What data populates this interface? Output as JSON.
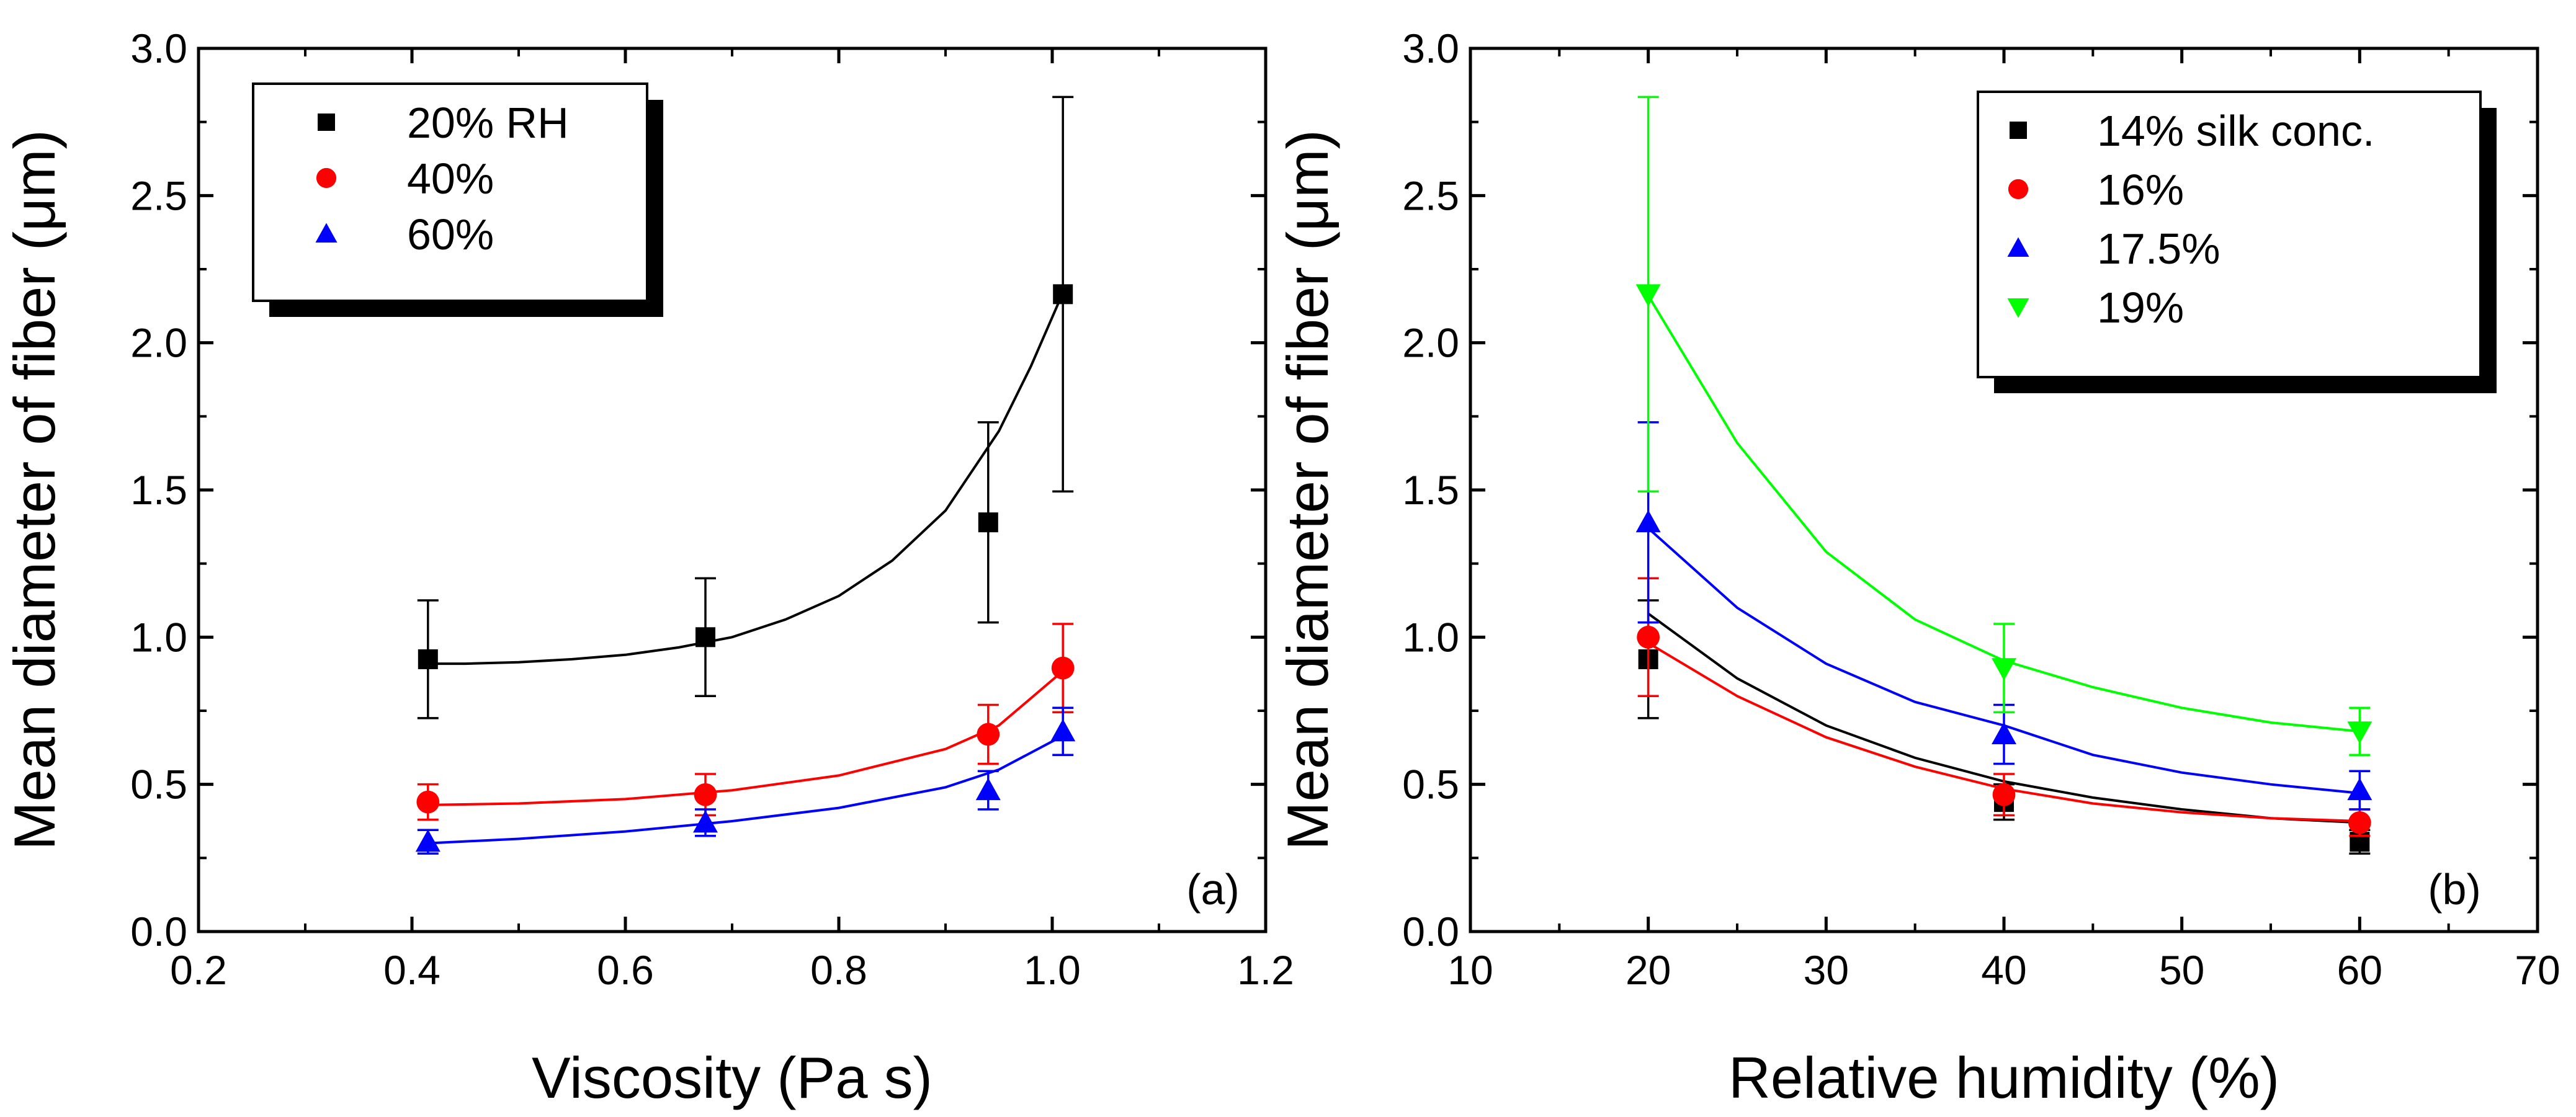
{
  "chart_data": [
    {
      "panel": "(a)",
      "type": "scatter",
      "xlabel": "Viscosity (Pa s)",
      "ylabel": "Mean diameter of fiber (μm)",
      "xlim": [
        0.2,
        1.2
      ],
      "ylim": [
        0.0,
        3.0
      ],
      "xticks": [
        "0.2",
        "0.4",
        "0.6",
        "0.8",
        "1.0",
        "1.2"
      ],
      "yticks": [
        "0.0",
        "0.5",
        "1.0",
        "1.5",
        "2.0",
        "2.5",
        "3.0"
      ],
      "legend_position": "top-left",
      "series": [
        {
          "name": "20% RH",
          "color": "#000000",
          "marker": "square",
          "x": [
            0.415,
            0.675,
            0.94,
            1.01
          ],
          "y": [
            0.925,
            1.0,
            1.39,
            2.165
          ],
          "err": [
            0.2,
            0.2,
            0.34,
            0.67
          ],
          "fit": {
            "x": [
              0.415,
              0.45,
              0.5,
              0.55,
              0.6,
              0.65,
              0.7,
              0.75,
              0.8,
              0.85,
              0.9,
              0.95,
              0.98,
              1.01
            ],
            "y": [
              0.91,
              0.91,
              0.915,
              0.925,
              0.94,
              0.965,
              1.0,
              1.06,
              1.14,
              1.26,
              1.43,
              1.7,
              1.92,
              2.17
            ]
          }
        },
        {
          "name": "40%",
          "color": "#ff0000",
          "marker": "circle",
          "x": [
            0.415,
            0.675,
            0.94,
            1.01
          ],
          "y": [
            0.44,
            0.465,
            0.67,
            0.895
          ],
          "err": [
            0.06,
            0.07,
            0.1,
            0.15
          ],
          "fit": {
            "x": [
              0.415,
              0.5,
              0.6,
              0.7,
              0.8,
              0.9,
              0.95,
              1.01
            ],
            "y": [
              0.43,
              0.435,
              0.45,
              0.48,
              0.53,
              0.62,
              0.7,
              0.885
            ]
          }
        },
        {
          "name": "60%",
          "color": "#0000ff",
          "marker": "triangle-up",
          "x": [
            0.415,
            0.675,
            0.94,
            1.01
          ],
          "y": [
            0.305,
            0.37,
            0.48,
            0.68
          ],
          "err": [
            0.04,
            0.045,
            0.065,
            0.08
          ],
          "fit": {
            "x": [
              0.415,
              0.5,
              0.6,
              0.7,
              0.8,
              0.9,
              0.95,
              1.01
            ],
            "y": [
              0.3,
              0.315,
              0.34,
              0.375,
              0.42,
              0.49,
              0.55,
              0.665
            ]
          }
        }
      ]
    },
    {
      "panel": "(b)",
      "type": "scatter",
      "xlabel": "Relative humidity (%)",
      "ylabel": "Mean diameter of fiber (μm)",
      "xlim": [
        10,
        70
      ],
      "ylim": [
        0.0,
        3.0
      ],
      "xticks": [
        "10",
        "20",
        "30",
        "40",
        "50",
        "60",
        "70"
      ],
      "yticks": [
        "0.0",
        "0.5",
        "1.0",
        "1.5",
        "2.0",
        "2.5",
        "3.0"
      ],
      "legend_position": "top-right",
      "series": [
        {
          "name": "14% silk conc.",
          "color": "#000000",
          "marker": "square",
          "x": [
            20,
            40,
            60
          ],
          "y": [
            0.925,
            0.44,
            0.305
          ],
          "err": [
            0.2,
            0.06,
            0.04
          ],
          "fit": {
            "x": [
              20,
              25,
              30,
              35,
              40,
              45,
              50,
              55,
              60
            ],
            "y": [
              1.08,
              0.86,
              0.7,
              0.59,
              0.51,
              0.455,
              0.415,
              0.385,
              0.37
            ]
          }
        },
        {
          "name": "16%",
          "color": "#ff0000",
          "marker": "circle",
          "x": [
            20,
            40,
            60
          ],
          "y": [
            1.0,
            0.465,
            0.37
          ],
          "err": [
            0.2,
            0.07,
            0.045
          ],
          "fit": {
            "x": [
              20,
              25,
              30,
              35,
              40,
              45,
              50,
              55,
              60
            ],
            "y": [
              0.98,
              0.8,
              0.66,
              0.56,
              0.485,
              0.435,
              0.405,
              0.385,
              0.375
            ]
          }
        },
        {
          "name": "17.5%",
          "color": "#0000ff",
          "marker": "triangle-up",
          "x": [
            20,
            40,
            60
          ],
          "y": [
            1.39,
            0.67,
            0.48
          ],
          "err": [
            0.34,
            0.1,
            0.065
          ],
          "fit": {
            "x": [
              20,
              25,
              30,
              35,
              40,
              45,
              50,
              55,
              60
            ],
            "y": [
              1.37,
              1.1,
              0.91,
              0.78,
              0.7,
              0.6,
              0.54,
              0.5,
              0.47
            ]
          }
        },
        {
          "name": "19%",
          "color": "#00ff00",
          "marker": "triangle-down",
          "x": [
            20,
            40,
            60
          ],
          "y": [
            2.165,
            0.895,
            0.68
          ],
          "err": [
            0.67,
            0.15,
            0.08
          ],
          "fit": {
            "x": [
              20,
              25,
              30,
              35,
              40,
              45,
              50,
              55,
              60
            ],
            "y": [
              2.16,
              1.66,
              1.29,
              1.06,
              0.92,
              0.83,
              0.76,
              0.71,
              0.68
            ]
          }
        }
      ]
    }
  ]
}
